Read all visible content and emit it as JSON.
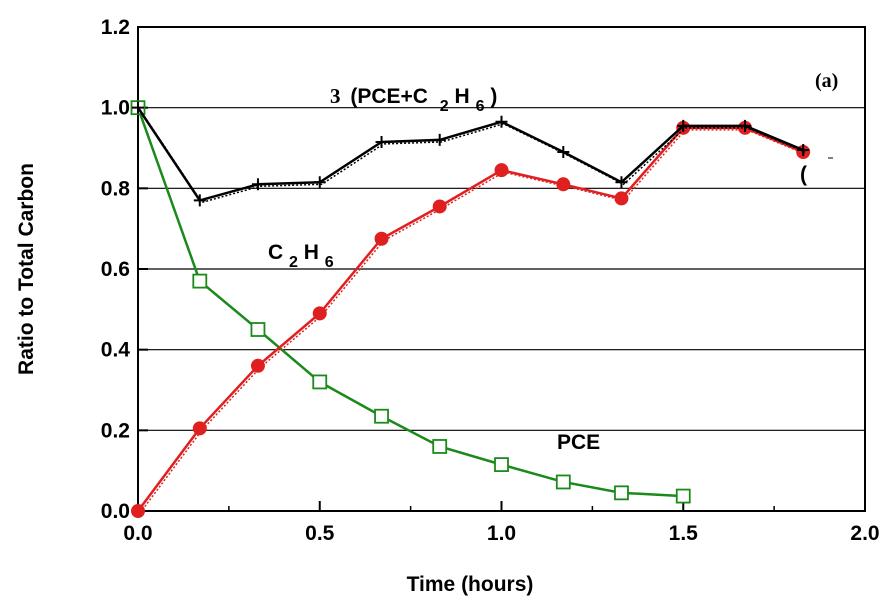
{
  "chart_data": {
    "type": "line",
    "xlabel": "Time (hours)",
    "ylabel": "Ratio to Total Carbon",
    "xlim": [
      0,
      2.0
    ],
    "ylim": [
      0,
      1.2
    ],
    "x_ticks": [
      "0.0",
      "0.5",
      "1.0",
      "1.5",
      "2.0"
    ],
    "y_ticks": [
      "0.0",
      "0.2",
      "0.4",
      "0.6",
      "0.8",
      "1.0",
      "1.2"
    ],
    "grid": "horizontal",
    "panel_label": "(a)",
    "annotations": {
      "sum_prefix": "3",
      "sum_main": "(PCE+C",
      "sum_sub": "2",
      "sum_h": "H",
      "sum_sub2": "6",
      "sum_close": ")",
      "c2h6_c": "C",
      "c2h6_sub1": "2",
      "c2h6_h": "H",
      "c2h6_sub2": "6",
      "pce": "PCE",
      "paren": "("
    },
    "series": [
      {
        "color": "#1a8a1a",
        "marker": "open-square",
        "x": [
          0.0,
          0.17,
          0.33,
          0.5,
          0.67,
          0.83,
          1.0,
          1.17,
          1.33,
          1.5
        ],
        "y": [
          1.0,
          0.57,
          0.45,
          0.32,
          0.235,
          0.16,
          0.115,
          0.072,
          0.045,
          0.037
        ]
      },
      {
        "color": "#e02020",
        "marker": "filled-circle",
        "x": [
          0.0,
          0.17,
          0.33,
          0.5,
          0.67,
          0.83,
          1.0,
          1.17,
          1.33,
          1.5,
          1.67,
          1.83
        ],
        "y": [
          0.0,
          0.205,
          0.36,
          0.49,
          0.675,
          0.755,
          0.845,
          0.81,
          0.775,
          0.95,
          0.95,
          0.89
        ]
      },
      {
        "color": "#000000",
        "marker": "plus",
        "x": [
          0.0,
          0.17,
          0.33,
          0.5,
          0.67,
          0.83,
          1.0,
          1.17,
          1.33,
          1.5,
          1.67,
          1.83
        ],
        "y": [
          1.0,
          0.77,
          0.81,
          0.815,
          0.915,
          0.92,
          0.965,
          0.89,
          0.815,
          0.955,
          0.955,
          0.895
        ]
      }
    ]
  }
}
